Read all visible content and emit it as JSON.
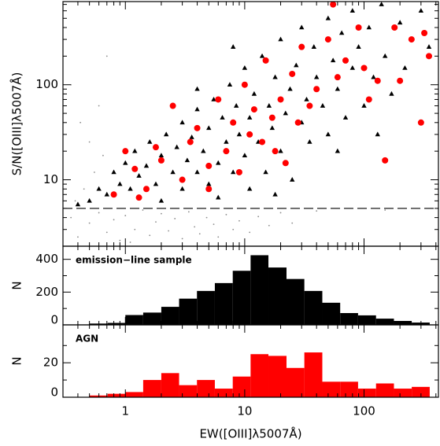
{
  "chart_data": [
    {
      "type": "scatter",
      "ylabel": "S/N([OIII]λ5007Å)",
      "log_x": true,
      "log_y": true,
      "xlim": [
        0.3,
        420
      ],
      "xticks": [
        1,
        10,
        100
      ],
      "xminor": [
        0.4,
        0.5,
        0.6,
        0.7,
        0.8,
        0.9,
        2,
        3,
        4,
        5,
        6,
        7,
        8,
        9,
        20,
        30,
        40,
        50,
        60,
        70,
        80,
        90,
        200,
        300,
        400
      ],
      "ylim": [
        2,
        750
      ],
      "yticks": [
        10,
        100
      ],
      "yminor": [
        3,
        4,
        5,
        6,
        7,
        8,
        9,
        20,
        30,
        40,
        50,
        60,
        70,
        80,
        90,
        200,
        300,
        400,
        500,
        600,
        700
      ],
      "hline": 5,
      "series": [
        {
          "color": "#8c8c8c",
          "marker": "dot",
          "x": [
            0.35,
            0.4,
            0.5,
            0.6,
            0.7,
            0.8,
            0.9,
            1,
            1.2,
            1.4,
            1.6,
            1.8,
            2,
            2.3,
            2.6,
            3,
            3.4,
            3.8,
            4.2,
            4.8,
            5.5,
            6,
            7,
            8,
            9,
            11,
            13,
            16,
            20,
            0.45,
            0.55,
            0.38,
            0.65,
            0.5,
            0.42,
            0.35,
            0.6,
            0.7,
            25,
            40,
            150,
            1.1
          ],
          "y": [
            4,
            2.5,
            3.5,
            4.5,
            2.8,
            3.8,
            2.3,
            4.2,
            3,
            4.8,
            2.6,
            3.6,
            4.4,
            2.9,
            3.9,
            2.4,
            4.6,
            3.2,
            2.7,
            4,
            3.4,
            2.5,
            4.3,
            3,
            3.7,
            2.8,
            4.1,
            3.3,
            4.5,
            8,
            12,
            6,
            18,
            25,
            40,
            100,
            60,
            200,
            3.5,
            4.7,
            4.8,
            2.2
          ]
        },
        {
          "color": "#000000",
          "marker": "triangle",
          "x": [
            0.5,
            0.6,
            0.7,
            0.8,
            0.9,
            1.0,
            1.1,
            1.2,
            1.3,
            1.5,
            1.6,
            1.8,
            2,
            2.2,
            2.5,
            2.7,
            3,
            3,
            3.3,
            3.6,
            4,
            4,
            4.5,
            5,
            5,
            5.5,
            6,
            6.5,
            7,
            7.5,
            8,
            8.5,
            9,
            10,
            10,
            11,
            11,
            12,
            13,
            14,
            15,
            16,
            17,
            18,
            20,
            20,
            22,
            24,
            25,
            27,
            30,
            30,
            33,
            35,
            38,
            40,
            45,
            50,
            50,
            55,
            60,
            65,
            70,
            80,
            80,
            90,
            100,
            110,
            120,
            140,
            150,
            170,
            200,
            220,
            250,
            300,
            350,
            0.4,
            2,
            6,
            18,
            60,
            130,
            8,
            4
          ],
          "y": [
            6,
            8,
            7,
            12,
            9,
            15,
            8,
            20,
            11,
            14,
            25,
            9,
            18,
            30,
            12,
            22,
            40,
            8,
            16,
            28,
            55,
            12,
            20,
            35,
            9,
            70,
            15,
            45,
            25,
            100,
            12,
            60,
            30,
            150,
            18,
            8,
            45,
            80,
            25,
            200,
            12,
            60,
            35,
            120,
            20,
            300,
            50,
            90,
            10,
            160,
            40,
            400,
            70,
            25,
            250,
            120,
            60,
            500,
            30,
            180,
            90,
            350,
            45,
            600,
            150,
            250,
            60,
            400,
            120,
            700,
            200,
            80,
            450,
            150,
            300,
            600,
            250,
            5.5,
            6,
            6.5,
            7,
            20,
            30,
            250,
            90
          ]
        },
        {
          "color": "#ff0000",
          "marker": "circle",
          "x": [
            0.8,
            1,
            1.2,
            1.5,
            1.8,
            2,
            2.5,
            3,
            3.5,
            4,
            5,
            6,
            7,
            8,
            9,
            10,
            11,
            12,
            14,
            15,
            17,
            20,
            22,
            25,
            28,
            30,
            35,
            40,
            50,
            55,
            60,
            70,
            90,
            100,
            110,
            130,
            150,
            180,
            200,
            250,
            320,
            350,
            300,
            1.3,
            5,
            18
          ],
          "y": [
            7,
            20,
            13,
            8,
            22,
            16,
            60,
            10,
            25,
            35,
            14,
            70,
            20,
            40,
            12,
            100,
            30,
            55,
            25,
            180,
            45,
            70,
            15,
            130,
            40,
            250,
            60,
            90,
            300,
            700,
            120,
            180,
            400,
            150,
            70,
            110,
            16,
            400,
            110,
            300,
            350,
            200,
            40,
            6.5,
            8,
            20
          ]
        }
      ]
    },
    {
      "type": "histogram",
      "ylabel": "N",
      "annotation": "emission−line sample",
      "log_x": true,
      "xlim": [
        0.3,
        420
      ],
      "xticks": [
        1,
        10,
        100
      ],
      "xminor": [
        0.4,
        0.5,
        0.6,
        0.7,
        0.8,
        0.9,
        2,
        3,
        4,
        5,
        6,
        7,
        8,
        9,
        20,
        30,
        40,
        50,
        60,
        70,
        80,
        90,
        200,
        300,
        400
      ],
      "ylim": [
        0,
        480
      ],
      "yticks": [
        0,
        200,
        400
      ],
      "yminor": [
        100,
        300
      ],
      "color": "#000000",
      "bins": [
        0.5,
        0.71,
        1.0,
        1.41,
        2.0,
        2.82,
        3.98,
        5.62,
        7.94,
        11.2,
        15.8,
        22.4,
        31.6,
        44.7,
        63.1,
        89.1,
        126,
        178,
        251,
        355
      ],
      "counts": [
        8,
        12,
        60,
        75,
        110,
        160,
        207,
        255,
        330,
        425,
        350,
        280,
        207,
        135,
        72,
        58,
        38,
        24,
        14
      ]
    },
    {
      "type": "histogram",
      "ylabel": "N",
      "xlabel": "EW([OIII]λ5007Å)",
      "annotation": "AGN",
      "log_x": true,
      "xlim": [
        0.3,
        420
      ],
      "xticks": [
        1,
        10,
        100
      ],
      "xminor": [
        0.4,
        0.5,
        0.6,
        0.7,
        0.8,
        0.9,
        2,
        3,
        4,
        5,
        6,
        7,
        8,
        9,
        20,
        30,
        40,
        50,
        60,
        70,
        80,
        90,
        200,
        300,
        400
      ],
      "ylim": [
        0,
        42
      ],
      "yticks": [
        0,
        20
      ],
      "yminor": [
        10,
        30
      ],
      "color": "#ff0000",
      "bins": [
        0.5,
        0.71,
        1.0,
        1.41,
        2.0,
        2.82,
        3.98,
        5.62,
        7.94,
        11.2,
        15.8,
        22.4,
        31.6,
        44.7,
        63.1,
        89.1,
        126,
        178,
        251,
        355
      ],
      "counts": [
        1,
        2,
        3,
        10,
        14,
        7,
        10,
        5,
        12,
        25,
        24,
        17,
        26,
        9,
        9,
        5,
        8,
        5,
        6
      ]
    }
  ]
}
